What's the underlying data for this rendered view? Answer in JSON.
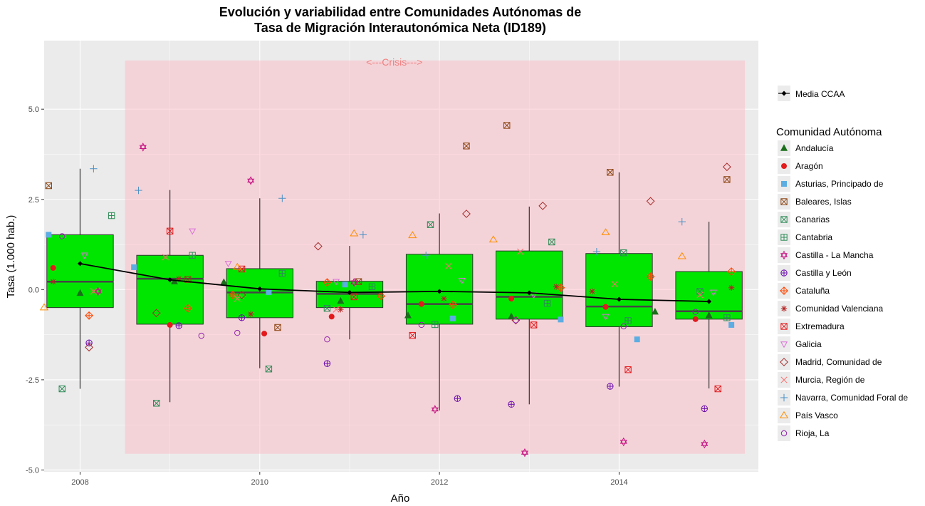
{
  "chart_data": {
    "type": "boxplot",
    "title_lines": [
      "Evolución y variabilidad entre Comunidades Autónomas de",
      "Tasa de Migración Interautonómica Neta (ID189)"
    ],
    "xlabel": "Año",
    "ylabel": "Tasa (1.000 hab.)",
    "xlim": [
      2007.6,
      2015.55
    ],
    "ylim": [
      -5.05,
      6.9
    ],
    "x_ticks": [
      2008,
      2010,
      2012,
      2014
    ],
    "x_tick_labels": [
      "2008",
      "2010",
      "2012",
      "2014"
    ],
    "y_ticks": [
      -5,
      -2.5,
      0,
      2.5,
      5
    ],
    "y_tick_labels": [
      "-5.0",
      "-2.5",
      "0.0",
      "2.5",
      "5.0"
    ],
    "crisis": {
      "label": "<---Crisis--->",
      "x_start": 2008.5,
      "x_end": 2015.4,
      "y_min": -4.55,
      "y_max": 6.35
    },
    "colors": {
      "panel": "#ebebeb",
      "grid": "#ffffff",
      "box_fill": "#00e600",
      "crisis_fill": "#ffb6c1"
    },
    "boxes": [
      {
        "year": 2008,
        "min": -2.75,
        "q1": -0.5,
        "median": 0.22,
        "q3": 1.52,
        "max": 3.35,
        "mean": 0.72
      },
      {
        "year": 2009,
        "min": -3.12,
        "q1": -0.96,
        "median": 0.3,
        "q3": 0.95,
        "max": 2.76,
        "mean": 0.27
      },
      {
        "year": 2010,
        "min": -2.18,
        "q1": -0.78,
        "median": -0.08,
        "q3": 0.58,
        "max": 2.53,
        "mean": 0.02
      },
      {
        "year": 2011,
        "min": -1.38,
        "q1": -0.5,
        "median": -0.12,
        "q3": 0.23,
        "max": 1.21,
        "mean": -0.08
      },
      {
        "year": 2012,
        "min": -3.35,
        "q1": -0.96,
        "median": -0.4,
        "q3": 0.98,
        "max": 2.11,
        "mean": -0.05
      },
      {
        "year": 2013,
        "min": -3.18,
        "q1": -0.82,
        "median": -0.2,
        "q3": 1.07,
        "max": 2.3,
        "mean": -0.09
      },
      {
        "year": 2014,
        "min": -2.69,
        "q1": -1.03,
        "median": -0.47,
        "q3": 1.0,
        "max": 3.25,
        "mean": -0.27
      },
      {
        "year": 2015,
        "min": -2.74,
        "q1": -0.82,
        "median": -0.6,
        "q3": 0.5,
        "max": 1.88,
        "mean": -0.33
      }
    ],
    "mean_line_name": "Media CCAA",
    "legend_title": "Comunidad Autónoma",
    "series": [
      {
        "name": "Andalucía",
        "shape": "triangle",
        "color": "#1a6e1a",
        "points": [
          [
            2008,
            -0.1
          ],
          [
            2009.05,
            0.22
          ],
          [
            2009.6,
            0.2
          ],
          [
            2010.9,
            -0.32
          ],
          [
            2011.65,
            -0.72
          ],
          [
            2012.8,
            -0.75
          ],
          [
            2014.4,
            -0.62
          ],
          [
            2015,
            -0.72
          ]
        ]
      },
      {
        "name": "Aragón",
        "shape": "circle",
        "color": "#e31a1c",
        "points": [
          [
            2007.7,
            0.6
          ],
          [
            2009,
            -0.98
          ],
          [
            2010.05,
            -1.22
          ],
          [
            2010.8,
            -0.75
          ],
          [
            2011.8,
            -0.4
          ],
          [
            2012.8,
            -0.25
          ],
          [
            2013.85,
            -0.48
          ],
          [
            2014.85,
            -0.82
          ]
        ]
      },
      {
        "name": "Asturias, Principado de",
        "shape": "square",
        "color": "#5dade2",
        "points": [
          [
            2007.65,
            1.52
          ],
          [
            2008.6,
            0.62
          ],
          [
            2010.1,
            -0.07
          ],
          [
            2010.95,
            0.14
          ],
          [
            2012.15,
            -0.8
          ],
          [
            2013.35,
            -0.83
          ],
          [
            2014.2,
            -1.38
          ],
          [
            2015.25,
            -0.98
          ]
        ]
      },
      {
        "name": "Baleares, Islas",
        "shape": "squarex",
        "color": "#8b4513",
        "points": [
          [
            2007.65,
            2.88
          ],
          [
            2009.2,
            0.28
          ],
          [
            2010.2,
            -1.05
          ],
          [
            2011.1,
            0.22
          ],
          [
            2012.3,
            3.98
          ],
          [
            2012.75,
            4.55
          ],
          [
            2013.9,
            3.25
          ],
          [
            2015.2,
            3.05
          ]
        ]
      },
      {
        "name": "Canarias",
        "shape": "squarex2",
        "color": "#2e8b57",
        "points": [
          [
            2007.8,
            -2.75
          ],
          [
            2008.85,
            -3.15
          ],
          [
            2010.1,
            -2.2
          ],
          [
            2010.75,
            -0.52
          ],
          [
            2011.9,
            1.8
          ],
          [
            2013.25,
            1.32
          ],
          [
            2014.05,
            1.02
          ],
          [
            2014.9,
            -0.05
          ]
        ]
      },
      {
        "name": "Cantabria",
        "shape": "squareplus",
        "color": "#2e8b57",
        "points": [
          [
            2008.35,
            2.05
          ],
          [
            2009.25,
            0.95
          ],
          [
            2010.25,
            0.45
          ],
          [
            2011.25,
            0.08
          ],
          [
            2011.95,
            -0.97
          ],
          [
            2013.2,
            -0.38
          ],
          [
            2014.1,
            -0.86
          ],
          [
            2015.2,
            -0.78
          ]
        ]
      },
      {
        "name": "Castilla - La Mancha",
        "shape": "star",
        "color": "#c71585",
        "points": [
          [
            2008.7,
            3.95
          ],
          [
            2009.9,
            3.02
          ],
          [
            2011.05,
            0.2
          ],
          [
            2011.95,
            -3.32
          ],
          [
            2012.95,
            -4.52
          ],
          [
            2014.05,
            -4.22
          ],
          [
            2014.95,
            -4.28
          ],
          [
            2008.2,
            -0.05
          ]
        ]
      },
      {
        "name": "Castilla y León",
        "shape": "circleplus",
        "color": "#6a0dad",
        "points": [
          [
            2008.1,
            -1.48
          ],
          [
            2009.1,
            -1.0
          ],
          [
            2009.8,
            -0.78
          ],
          [
            2010.75,
            -2.05
          ],
          [
            2012.2,
            -3.02
          ],
          [
            2012.8,
            -3.18
          ],
          [
            2013.9,
            -2.68
          ],
          [
            2014.95,
            -3.3
          ]
        ]
      },
      {
        "name": "Cataluña",
        "shape": "diamondplus",
        "color": "#ff4500",
        "points": [
          [
            2008.1,
            -0.72
          ],
          [
            2009.2,
            -0.52
          ],
          [
            2009.7,
            -0.15
          ],
          [
            2010.75,
            0.2
          ],
          [
            2011.35,
            -0.18
          ],
          [
            2012.15,
            -0.42
          ],
          [
            2013.35,
            0.05
          ],
          [
            2014.35,
            0.36
          ],
          [
            2015.25,
            0.5
          ]
        ]
      },
      {
        "name": "Comunidad Valenciana",
        "shape": "asterisk",
        "color": "#b22222",
        "points": [
          [
            2007.7,
            0.22
          ],
          [
            2009.1,
            0.3
          ],
          [
            2009.9,
            -0.68
          ],
          [
            2010.9,
            -0.55
          ],
          [
            2012.05,
            -0.25
          ],
          [
            2013.3,
            0.08
          ],
          [
            2013.7,
            -0.05
          ],
          [
            2015.25,
            0.05
          ]
        ]
      },
      {
        "name": "Extremadura",
        "shape": "squarex3",
        "color": "#e31a1c",
        "points": [
          [
            2009,
            1.62
          ],
          [
            2009.8,
            0.57
          ],
          [
            2011.05,
            -0.2
          ],
          [
            2011.7,
            -1.27
          ],
          [
            2013.05,
            -0.98
          ],
          [
            2014.1,
            -2.22
          ],
          [
            2015.1,
            -2.75
          ]
        ]
      },
      {
        "name": "Galicia",
        "shape": "trianglev",
        "color": "#da70d6",
        "points": [
          [
            2008.05,
            0.95
          ],
          [
            2009.25,
            1.62
          ],
          [
            2009.65,
            0.72
          ],
          [
            2010.85,
            0.22
          ],
          [
            2012.25,
            0.25
          ],
          [
            2013.05,
            -0.15
          ],
          [
            2013.85,
            -0.75
          ],
          [
            2015.05,
            -0.08
          ]
        ]
      },
      {
        "name": "Madrid, Comunidad de",
        "shape": "diamond",
        "color": "#a52a2a",
        "points": [
          [
            2008.1,
            -1.6
          ],
          [
            2008.85,
            -0.65
          ],
          [
            2009.8,
            -0.15
          ],
          [
            2010.65,
            1.2
          ],
          [
            2012.3,
            2.1
          ],
          [
            2012.85,
            -0.85
          ],
          [
            2013.15,
            2.32
          ],
          [
            2014.35,
            2.45
          ],
          [
            2015.2,
            3.4
          ]
        ]
      },
      {
        "name": "Murcia, Región de",
        "shape": "x",
        "color": "#ff6b6b",
        "points": [
          [
            2008.15,
            -0.05
          ],
          [
            2008.95,
            0.9
          ],
          [
            2009.75,
            -0.25
          ],
          [
            2010.85,
            -0.55
          ],
          [
            2012.1,
            0.65
          ],
          [
            2012.9,
            1.05
          ],
          [
            2013.95,
            0.15
          ],
          [
            2014.9,
            -0.15
          ]
        ]
      },
      {
        "name": "Navarra, Comunidad Foral de",
        "shape": "plus",
        "color": "#4a90c4",
        "points": [
          [
            2008.15,
            3.35
          ],
          [
            2008.65,
            2.75
          ],
          [
            2010.25,
            2.53
          ],
          [
            2011.15,
            1.52
          ],
          [
            2011.85,
            0.95
          ],
          [
            2013.75,
            1.05
          ],
          [
            2014.7,
            1.88
          ]
        ]
      },
      {
        "name": "País Vasco",
        "shape": "triangle_open",
        "color": "#ff8c00",
        "points": [
          [
            2007.6,
            -0.5
          ],
          [
            2009.75,
            0.62
          ],
          [
            2011.05,
            1.55
          ],
          [
            2011.7,
            1.5
          ],
          [
            2012.6,
            1.38
          ],
          [
            2013.85,
            1.58
          ],
          [
            2014.7,
            0.92
          ]
        ]
      },
      {
        "name": "Rioja, La",
        "shape": "circle_open",
        "color": "#8e24aa",
        "points": [
          [
            2007.8,
            1.48
          ],
          [
            2009.35,
            -1.28
          ],
          [
            2009.75,
            -1.2
          ],
          [
            2010.75,
            -1.38
          ],
          [
            2011.8,
            -0.98
          ],
          [
            2012.85,
            -0.85
          ],
          [
            2014.05,
            -1.02
          ],
          [
            2014.85,
            -0.62
          ]
        ]
      }
    ]
  }
}
